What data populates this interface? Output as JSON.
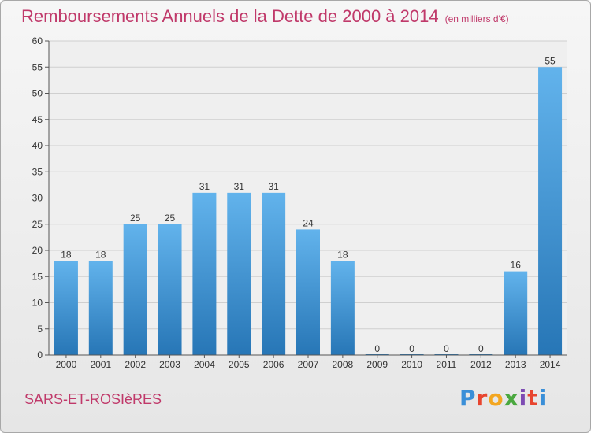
{
  "header": {
    "title": "Remboursements Annuels de la Dette de 2000 à 2014",
    "unit": "(en milliers d'€)"
  },
  "footer": {
    "commune": "SARS-ET-ROSIèRES",
    "logo": [
      "P",
      "r",
      "o",
      "x",
      "i",
      "t",
      "i"
    ]
  },
  "colors": {
    "bar_top": "#62b3ec",
    "bar_bottom": "#2776b6",
    "title": "#c0396a"
  },
  "chart_data": {
    "type": "bar",
    "categories": [
      "2000",
      "2001",
      "2002",
      "2003",
      "2004",
      "2005",
      "2006",
      "2007",
      "2008",
      "2009",
      "2010",
      "2011",
      "2012",
      "2013",
      "2014"
    ],
    "values": [
      18,
      18,
      25,
      25,
      31,
      31,
      31,
      24,
      18,
      0,
      0,
      0,
      0,
      16,
      55
    ],
    "ylim": [
      0,
      60
    ],
    "yticks": [
      0,
      5,
      10,
      15,
      20,
      25,
      30,
      35,
      40,
      45,
      50,
      55,
      60
    ],
    "grid": true
  }
}
